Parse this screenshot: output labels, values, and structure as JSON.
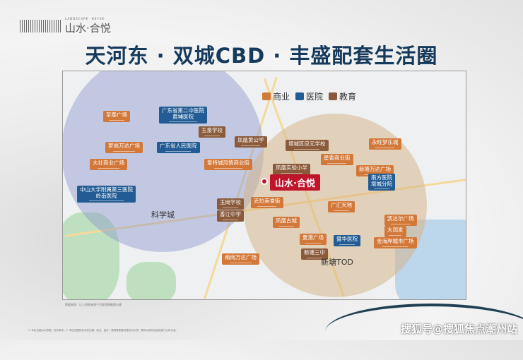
{
  "logo": {
    "subtitle": "LANDSCAPE ·HEYUE·",
    "name": "山水·合悦"
  },
  "title": "天河东 · 双城CBD · 丰盛配套生活圈",
  "legend": [
    {
      "label": "商业",
      "color": "#d2793a"
    },
    {
      "label": "医院",
      "color": "#235c94"
    },
    {
      "label": "教育",
      "color": "#8a5a3a"
    }
  ],
  "project": "山水·合悦",
  "areas": [
    "科学城",
    "新塘TOD"
  ],
  "commerce": [
    "至泰广场",
    "萝岗万达广场",
    "大壮商业广场",
    "爱特城风情商业街",
    "克拉美食街",
    "星香商业街",
    "新塘万达广场",
    "永旺梦乐城",
    "广汇天地",
    "凯达尔广场",
    "大润发",
    "金海岸城市广场",
    "凤凰古城",
    "夏港广场",
    "南岗万达广场"
  ],
  "education": [
    "玉泉学校",
    "凤凰黄公学",
    "增城区应元学校",
    "凤凰实验小学",
    "玉岗学校",
    "香江中学",
    "新塘三中"
  ],
  "hospitals": [
    "广东省第二中医院\n黄埔医院",
    "广东省人民医院",
    "中山大学附属第三医院\n岭南医院",
    "南方医院\n增城分院",
    "暨华医院"
  ],
  "source_note": "数据来源：以上地图来源于百度地图截图示意",
  "footnote": "1. 本区位图为示意图，仅供参考；2. 本区位图所标示的交通、商业、医疗、教育等配套设施均为示意，具体以政府及相关部门公布为准。",
  "watermark": "搜狐号@搜狐焦点潮州站"
}
